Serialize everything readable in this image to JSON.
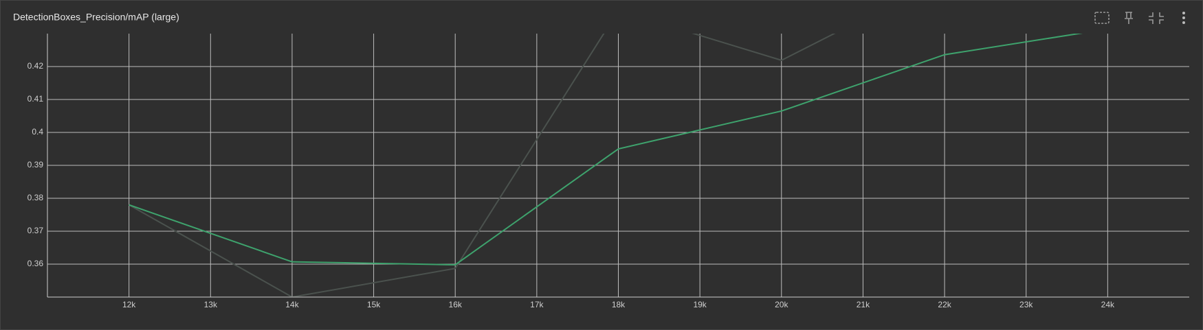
{
  "chart_data": {
    "type": "line",
    "title": "DetectionBoxes_Precision/mAP (large)",
    "x": [
      12000,
      14000,
      16000,
      18000,
      20000,
      22000,
      24000
    ],
    "series": [
      {
        "color": "#4b524e",
        "values": [
          0.378,
          0.35,
          0.3587,
          0.437,
          0.4219,
          0.447,
          null
        ]
      },
      {
        "color": "#3ea36d",
        "values": [
          0.378,
          0.3607,
          0.3598,
          0.395,
          0.4065,
          0.4236,
          0.4314
        ]
      }
    ],
    "xlim": [
      11000,
      25000
    ],
    "xticks": [
      {
        "value": 12000,
        "label": "12k"
      },
      {
        "value": 13000,
        "label": "13k"
      },
      {
        "value": 14000,
        "label": "14k"
      },
      {
        "value": 15000,
        "label": "15k"
      },
      {
        "value": 16000,
        "label": "16k"
      },
      {
        "value": 17000,
        "label": "17k"
      },
      {
        "value": 18000,
        "label": "18k"
      },
      {
        "value": 19000,
        "label": "19k"
      },
      {
        "value": 20000,
        "label": "20k"
      },
      {
        "value": 21000,
        "label": "21k"
      },
      {
        "value": 22000,
        "label": "22k"
      },
      {
        "value": 23000,
        "label": "23k"
      },
      {
        "value": 24000,
        "label": "24k"
      }
    ],
    "ylim": [
      0.35,
      0.43
    ],
    "yticks": [
      0.36,
      0.37,
      0.38,
      0.39,
      0.4,
      0.41,
      0.42
    ],
    "grid": true
  }
}
